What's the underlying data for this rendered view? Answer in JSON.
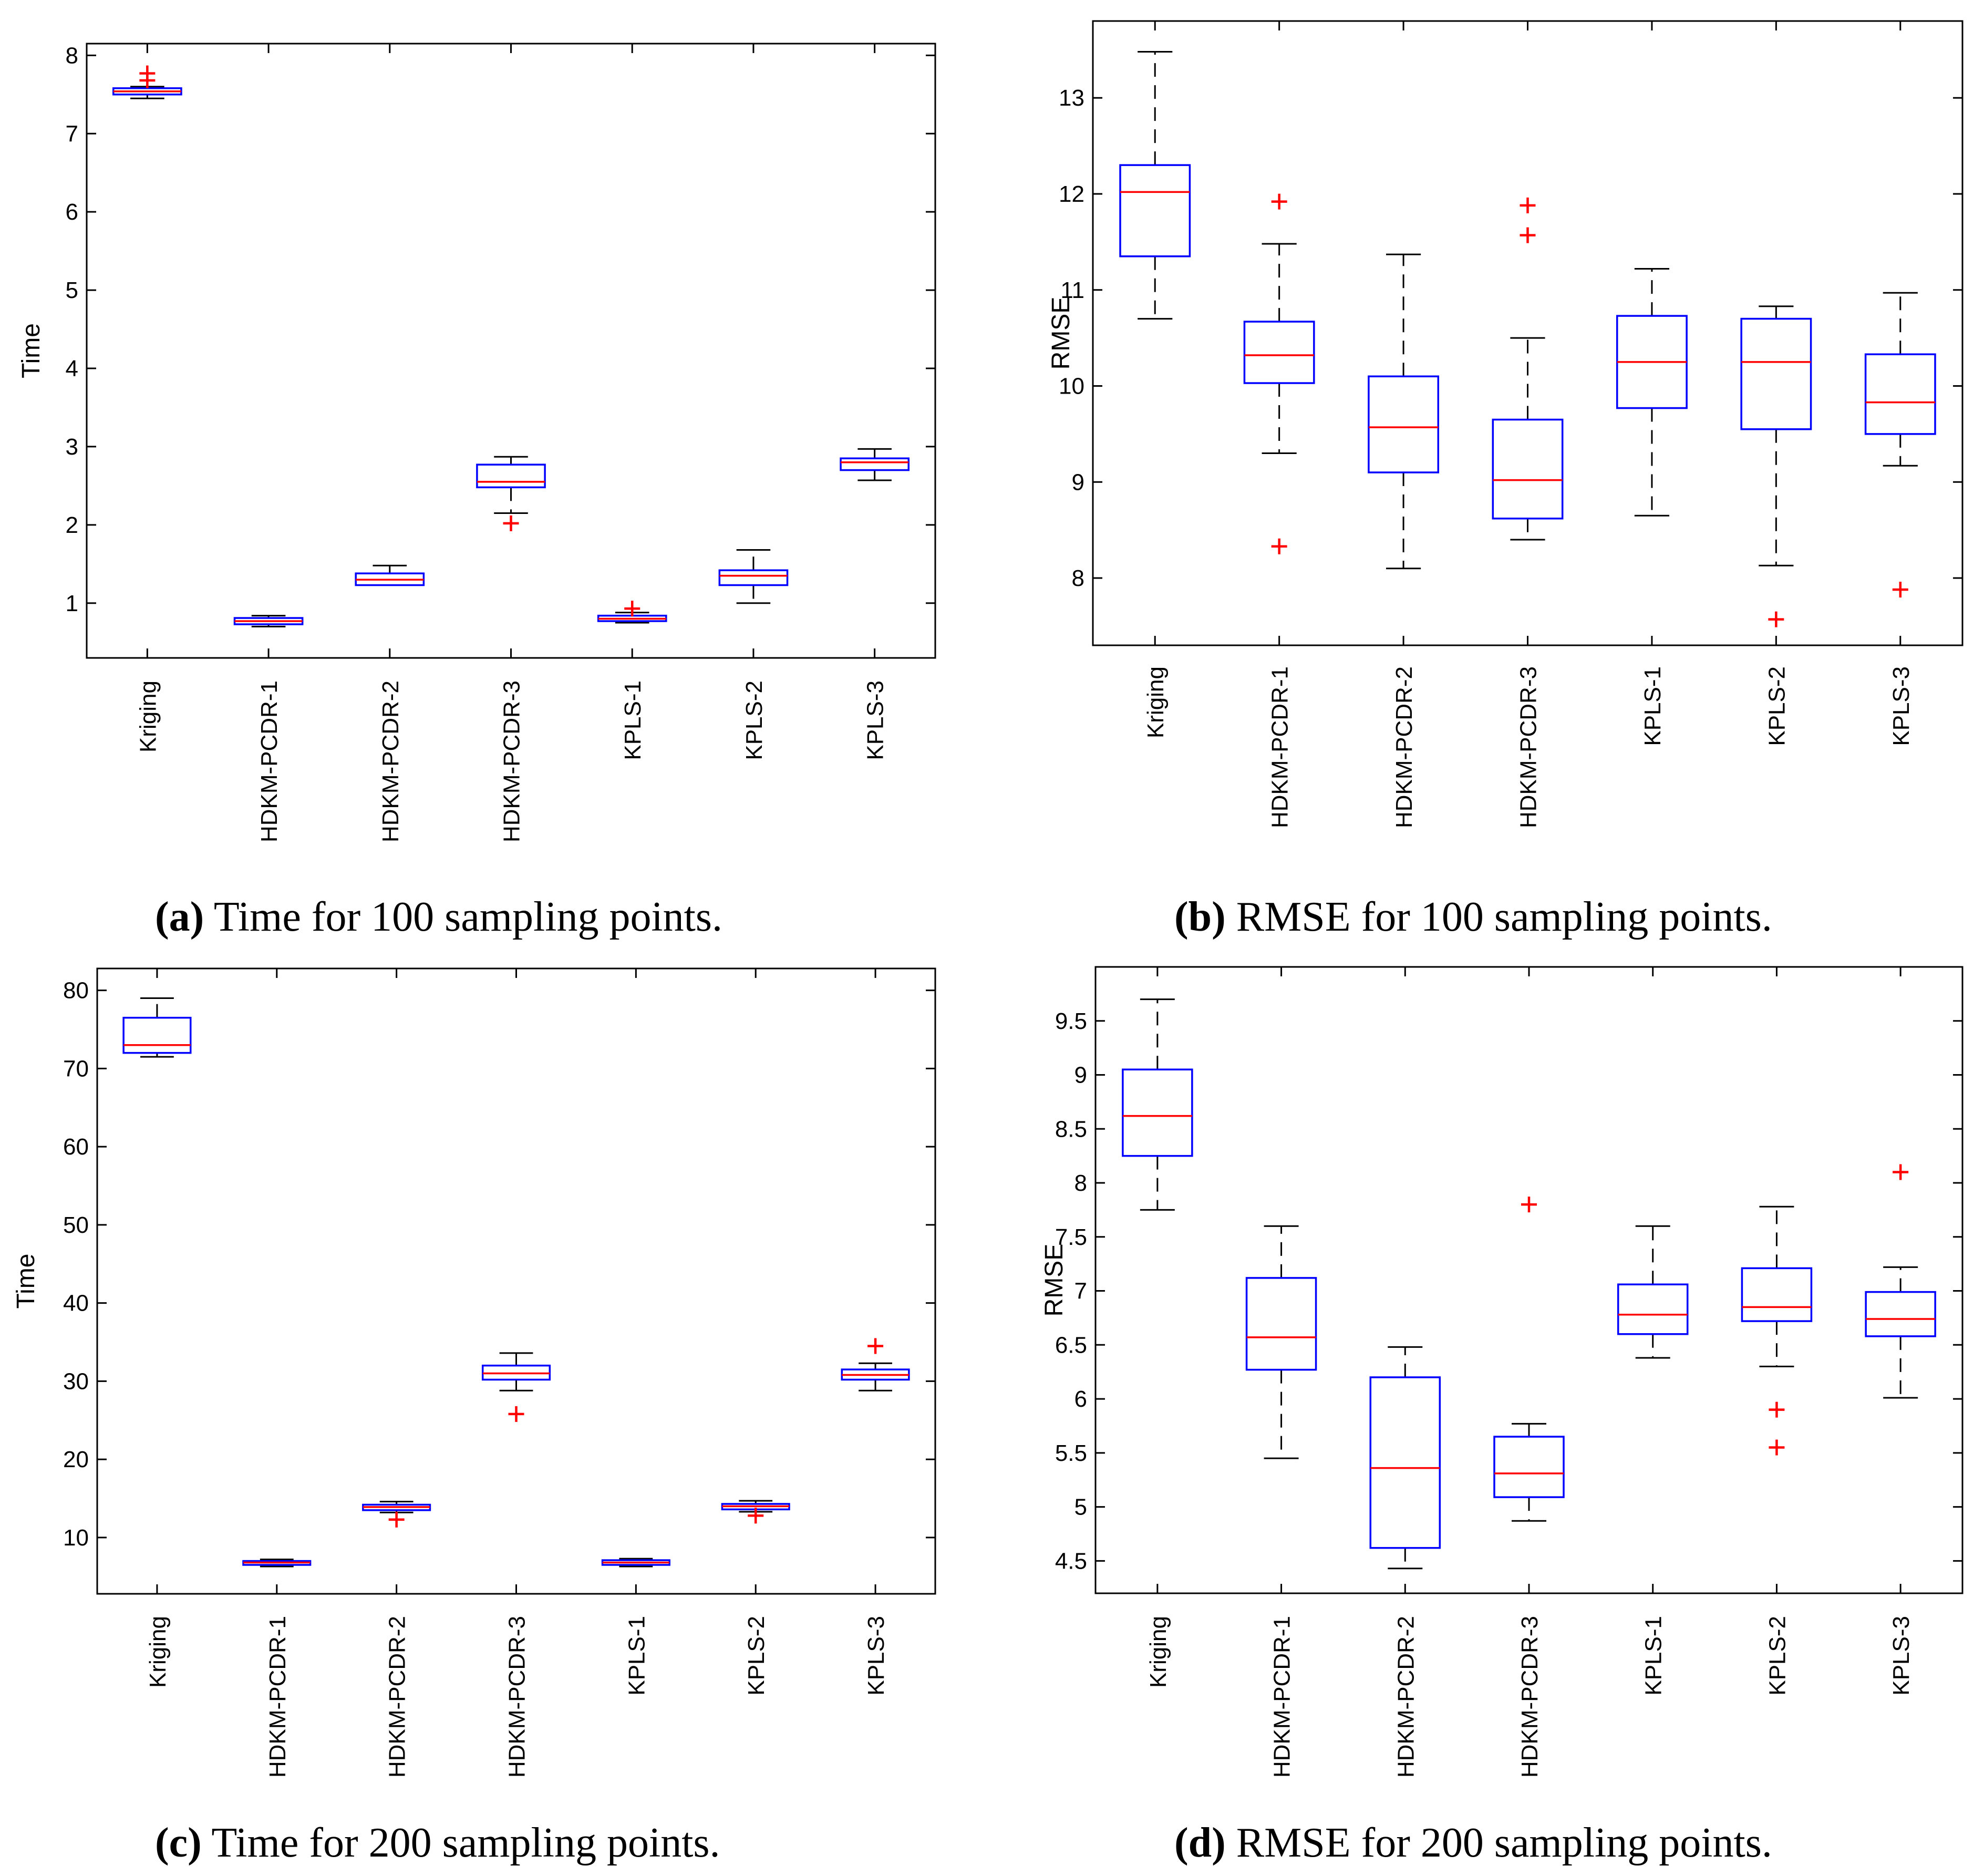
{
  "colors": {
    "box": "#0000ff",
    "median": "#ff0000",
    "whisker": "#000000",
    "outlier": "#ff0000",
    "frame": "#000000"
  },
  "chart_data": [
    {
      "panel": "a",
      "type": "boxplot",
      "caption_label": "(a)",
      "caption_text": " Time for 100 sampling points.",
      "ylabel": "Time",
      "ylim": [
        0.3,
        8.15
      ],
      "yticks": [
        1,
        2,
        3,
        4,
        5,
        6,
        7,
        8
      ],
      "ytick_labels": [
        "1",
        "2",
        "3",
        "4",
        "5",
        "6",
        "7",
        "8"
      ],
      "categories": [
        "Kriging",
        "HDKM-PCDR-1",
        "HDKM-PCDR-2",
        "HDKM-PCDR-3",
        "KPLS-1",
        "KPLS-2",
        "KPLS-3"
      ],
      "boxes": [
        {
          "whislo": 7.45,
          "q1": 7.5,
          "med": 7.54,
          "q3": 7.58,
          "whishi": 7.6,
          "outliers": [
            7.68,
            7.77
          ]
        },
        {
          "whislo": 0.7,
          "q1": 0.73,
          "med": 0.77,
          "q3": 0.81,
          "whishi": 0.84,
          "outliers": []
        },
        {
          "whislo": 1.23,
          "q1": 1.23,
          "med": 1.3,
          "q3": 1.38,
          "whishi": 1.48,
          "outliers": []
        },
        {
          "whislo": 2.15,
          "q1": 2.48,
          "med": 2.55,
          "q3": 2.77,
          "whishi": 2.87,
          "outliers": [
            2.02
          ]
        },
        {
          "whislo": 0.75,
          "q1": 0.77,
          "med": 0.8,
          "q3": 0.84,
          "whishi": 0.88,
          "outliers": [
            0.93
          ]
        },
        {
          "whislo": 1.0,
          "q1": 1.23,
          "med": 1.35,
          "q3": 1.42,
          "whishi": 1.68,
          "outliers": []
        },
        {
          "whislo": 2.57,
          "q1": 2.7,
          "med": 2.8,
          "q3": 2.85,
          "whishi": 2.97,
          "outliers": []
        }
      ]
    },
    {
      "panel": "b",
      "type": "boxplot",
      "caption_label": "(b)",
      "caption_text": " RMSE for 100 sampling points.",
      "ylabel": "RMSE",
      "ylim": [
        7.3,
        13.8
      ],
      "yticks": [
        8,
        9,
        10,
        11,
        12,
        13
      ],
      "ytick_labels": [
        "8",
        "9",
        "10",
        "11",
        "12",
        "13"
      ],
      "categories": [
        "Kriging",
        "HDKM-PCDR-1",
        "HDKM-PCDR-2",
        "HDKM-PCDR-3",
        "KPLS-1",
        "KPLS-2",
        "KPLS-3"
      ],
      "boxes": [
        {
          "whislo": 10.7,
          "q1": 11.35,
          "med": 12.02,
          "q3": 12.3,
          "whishi": 13.48,
          "outliers": []
        },
        {
          "whislo": 9.3,
          "q1": 10.03,
          "med": 10.32,
          "q3": 10.67,
          "whishi": 11.48,
          "outliers": [
            8.33,
            11.92
          ]
        },
        {
          "whislo": 8.1,
          "q1": 9.1,
          "med": 9.57,
          "q3": 10.1,
          "whishi": 11.37,
          "outliers": []
        },
        {
          "whislo": 8.4,
          "q1": 8.62,
          "med": 9.02,
          "q3": 9.65,
          "whishi": 10.5,
          "outliers": [
            11.57,
            11.88
          ]
        },
        {
          "whislo": 8.65,
          "q1": 9.77,
          "med": 10.25,
          "q3": 10.73,
          "whishi": 11.22,
          "outliers": []
        },
        {
          "whislo": 8.13,
          "q1": 9.55,
          "med": 10.25,
          "q3": 10.7,
          "whishi": 10.83,
          "outliers": [
            7.57
          ]
        },
        {
          "whislo": 9.17,
          "q1": 9.5,
          "med": 9.83,
          "q3": 10.33,
          "whishi": 10.97,
          "outliers": [
            7.88
          ]
        }
      ]
    },
    {
      "panel": "c",
      "type": "boxplot",
      "caption_label": "(c)",
      "caption_text": " Time for 200 sampling points.",
      "ylabel": "Time",
      "ylim": [
        2.8,
        82.8
      ],
      "yticks": [
        10,
        20,
        30,
        40,
        50,
        60,
        70,
        80
      ],
      "ytick_labels": [
        "10",
        "20",
        "30",
        "40",
        "50",
        "60",
        "70",
        "80"
      ],
      "categories": [
        "Kriging",
        "HDKM-PCDR-1",
        "HDKM-PCDR-2",
        "HDKM-PCDR-3",
        "KPLS-1",
        "KPLS-2",
        "KPLS-3"
      ],
      "boxes": [
        {
          "whislo": 71.5,
          "q1": 72.0,
          "med": 73.0,
          "q3": 76.5,
          "whishi": 79.0,
          "outliers": []
        },
        {
          "whislo": 6.3,
          "q1": 6.5,
          "med": 6.8,
          "q3": 7.0,
          "whishi": 7.2,
          "outliers": []
        },
        {
          "whislo": 13.2,
          "q1": 13.5,
          "med": 13.9,
          "q3": 14.2,
          "whishi": 14.6,
          "outliers": [
            12.3
          ]
        },
        {
          "whislo": 28.8,
          "q1": 30.2,
          "med": 31.0,
          "q3": 32.0,
          "whishi": 33.6,
          "outliers": [
            25.8
          ]
        },
        {
          "whislo": 6.3,
          "q1": 6.5,
          "med": 6.8,
          "q3": 7.1,
          "whishi": 7.3,
          "outliers": []
        },
        {
          "whislo": 13.3,
          "q1": 13.6,
          "med": 14.0,
          "q3": 14.3,
          "whishi": 14.7,
          "outliers": [
            12.8
          ]
        },
        {
          "whislo": 28.8,
          "q1": 30.2,
          "med": 30.8,
          "q3": 31.5,
          "whishi": 32.3,
          "outliers": [
            34.5
          ]
        }
      ]
    },
    {
      "panel": "d",
      "type": "boxplot",
      "caption_label": "(d)",
      "caption_text": " RMSE for 200 sampling points.",
      "ylabel": "RMSE",
      "ylim": [
        4.2,
        10.0
      ],
      "yticks": [
        4.5,
        5,
        5.5,
        6,
        6.5,
        7,
        7.5,
        8,
        8.5,
        9,
        9.5
      ],
      "ytick_labels": [
        "4.5",
        "5",
        "5.5",
        "6",
        "6.5",
        "7",
        "7.5",
        "8",
        "8.5",
        "9",
        "9.5"
      ],
      "categories": [
        "Kriging",
        "HDKM-PCDR-1",
        "HDKM-PCDR-2",
        "HDKM-PCDR-3",
        "KPLS-1",
        "KPLS-2",
        "KPLS-3"
      ],
      "boxes": [
        {
          "whislo": 7.75,
          "q1": 8.25,
          "med": 8.62,
          "q3": 9.05,
          "whishi": 9.7,
          "outliers": []
        },
        {
          "whislo": 5.45,
          "q1": 6.27,
          "med": 6.57,
          "q3": 7.12,
          "whishi": 7.6,
          "outliers": []
        },
        {
          "whislo": 4.43,
          "q1": 4.62,
          "med": 5.36,
          "q3": 6.2,
          "whishi": 6.48,
          "outliers": []
        },
        {
          "whislo": 4.87,
          "q1": 5.09,
          "med": 5.31,
          "q3": 5.65,
          "whishi": 5.77,
          "outliers": [
            7.8
          ]
        },
        {
          "whislo": 6.38,
          "q1": 6.6,
          "med": 6.78,
          "q3": 7.06,
          "whishi": 7.6,
          "outliers": []
        },
        {
          "whislo": 6.3,
          "q1": 6.72,
          "med": 6.85,
          "q3": 7.21,
          "whishi": 7.78,
          "outliers": [
            5.55,
            5.9
          ]
        },
        {
          "whislo": 6.01,
          "q1": 6.58,
          "med": 6.74,
          "q3": 6.99,
          "whishi": 7.22,
          "outliers": [
            8.1
          ]
        }
      ]
    }
  ]
}
